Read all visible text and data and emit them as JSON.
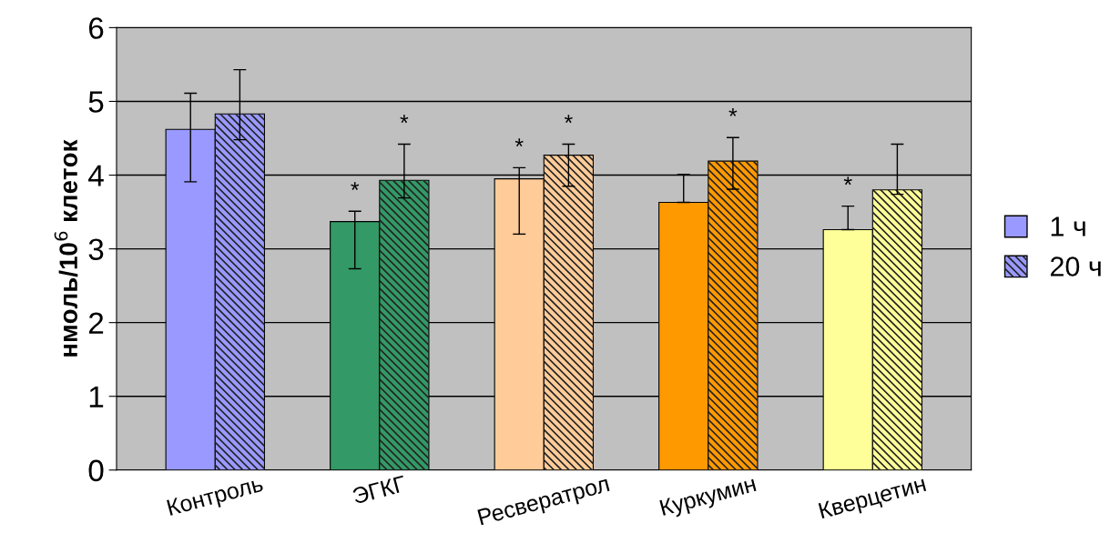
{
  "chart_data": {
    "type": "bar",
    "ylabel": "нмоль/10$^{6}$ клеток",
    "categories": [
      "Контроль",
      "ЭГКГ",
      "Ресвератрол",
      "Куркумин",
      "Кверцетин"
    ],
    "series": [
      {
        "name": "1 ч",
        "color": "#9999ff",
        "colors": [
          "#9999ff",
          "#339966",
          "#ffcc99",
          "#ff9900",
          "#ffff99"
        ],
        "values": [
          4.62,
          3.37,
          3.95,
          3.63,
          3.26
        ],
        "errors": [
          [
            3.91,
            5.11
          ],
          [
            2.73,
            3.51
          ],
          [
            3.2,
            4.1
          ],
          [
            3.63,
            4.01
          ],
          [
            3.26,
            3.58
          ]
        ],
        "value_labels": [
          null,
          "*",
          "*",
          null,
          "*"
        ]
      },
      {
        "name": "20 ч",
        "color": "#9999ff",
        "colors": [
          "#9999ff",
          "#339966",
          "#ffcc99",
          "#ff9900",
          "#ffff99"
        ],
        "values": [
          4.83,
          3.93,
          4.27,
          4.19,
          3.8
        ],
        "errors": [
          [
            4.48,
            5.43
          ],
          [
            3.69,
            4.42
          ],
          [
            3.85,
            4.42
          ],
          [
            3.81,
            4.51
          ],
          [
            3.74,
            4.42
          ]
        ],
        "value_labels": [
          null,
          "*",
          "*",
          "*",
          null
        ]
      }
    ],
    "ylim": [
      0,
      6
    ],
    "yticks": [
      0,
      1,
      2,
      3,
      4,
      5,
      6
    ],
    "grid": "y",
    "legend": "right"
  }
}
